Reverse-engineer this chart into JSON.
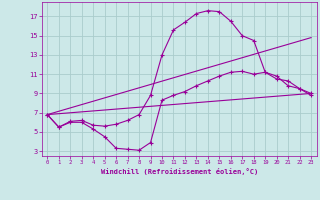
{
  "xlabel": "Windchill (Refroidissement éolien,°C)",
  "bg_color": "#cce8e8",
  "line_color": "#990099",
  "grid_color": "#aacccc",
  "xlim": [
    -0.5,
    23.5
  ],
  "ylim": [
    2.5,
    18.5
  ],
  "xticks": [
    0,
    1,
    2,
    3,
    4,
    5,
    6,
    7,
    8,
    9,
    10,
    11,
    12,
    13,
    14,
    15,
    16,
    17,
    18,
    19,
    20,
    21,
    22,
    23
  ],
  "yticks": [
    3,
    5,
    7,
    9,
    11,
    13,
    15,
    17
  ],
  "curve1_x": [
    0,
    1,
    2,
    3,
    4,
    5,
    6,
    7,
    8,
    9,
    10,
    11,
    12,
    13,
    14,
    15,
    16,
    17,
    18,
    19,
    20,
    21,
    22,
    23
  ],
  "curve1_y": [
    6.8,
    5.5,
    6.1,
    6.2,
    5.7,
    5.6,
    5.8,
    6.2,
    6.8,
    8.8,
    13.0,
    15.6,
    16.4,
    17.3,
    17.6,
    17.5,
    16.5,
    15.0,
    14.5,
    11.2,
    10.5,
    10.3,
    9.5,
    8.8
  ],
  "curve2_x": [
    0,
    1,
    2,
    3,
    4,
    5,
    6,
    7,
    8,
    9,
    10,
    11,
    12,
    13,
    14,
    15,
    16,
    17,
    18,
    19,
    20,
    21,
    22,
    23
  ],
  "curve2_y": [
    6.8,
    5.5,
    6.0,
    6.0,
    5.3,
    4.5,
    3.3,
    3.2,
    3.1,
    3.9,
    8.3,
    8.8,
    9.2,
    9.8,
    10.3,
    10.8,
    11.2,
    11.3,
    11.0,
    11.2,
    10.8,
    9.8,
    9.5,
    9.0
  ],
  "curve3_x": [
    0,
    23
  ],
  "curve3_y": [
    6.8,
    14.8
  ],
  "curve4_x": [
    0,
    23
  ],
  "curve4_y": [
    6.8,
    9.0
  ]
}
